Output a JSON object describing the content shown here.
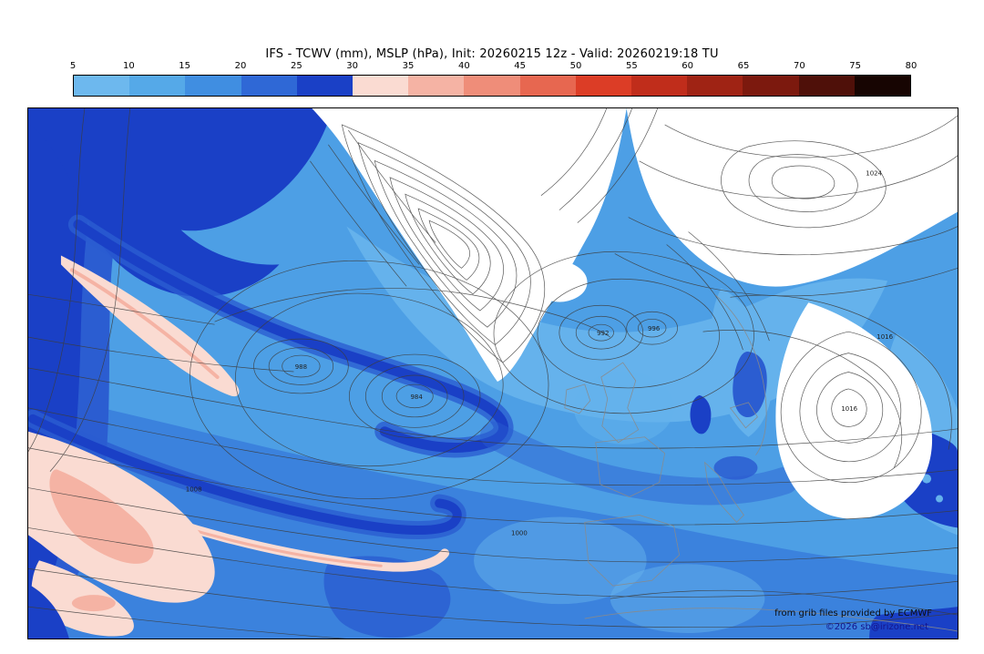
{
  "header": {
    "title": "IFS - TCWV (mm), MSLP (hPa), Init: 20260215 12z - Valid: 20260219:18 TU"
  },
  "colorbar": {
    "ticks": [
      "5",
      "10",
      "15",
      "20",
      "25",
      "30",
      "35",
      "40",
      "45",
      "50",
      "55",
      "60",
      "65",
      "70",
      "75",
      "80"
    ],
    "colors": [
      "#6db8ee",
      "#55a9e8",
      "#408ee1",
      "#2f68d6",
      "#1a40c6",
      "#fadbd2",
      "#f5b3a4",
      "#ef8d79",
      "#e76750",
      "#dc3d26",
      "#c02d1b",
      "#9f2314",
      "#7c190e",
      "#4f1009",
      "#170502"
    ]
  },
  "map": {
    "contour_labels": [
      "988",
      "984",
      "992",
      "996",
      "1016",
      "1024",
      "1008",
      "1000",
      "1016"
    ],
    "credits_line1": "from grib files provided by ECMWF",
    "credits_line2": "©2026 sb@irizone.net"
  },
  "chart_data": {
    "type": "heatmap",
    "title": "IFS - TCWV (mm), MSLP (hPa), Init: 20260215 12z - Valid: 20260219:18 TU",
    "model": "IFS",
    "shaded_variable": "TCWV (mm)",
    "contour_variable": "MSLP (hPa)",
    "init": "20260215 12z",
    "valid": "20260219:18 TU",
    "colorbar_ticks": [
      5,
      10,
      15,
      20,
      25,
      30,
      35,
      40,
      45,
      50,
      55,
      60,
      65,
      70,
      75,
      80
    ],
    "legend_position": "top",
    "attribution": "from grib files provided by ECMWF",
    "copyright": "©2026 sb@irizone.net"
  }
}
